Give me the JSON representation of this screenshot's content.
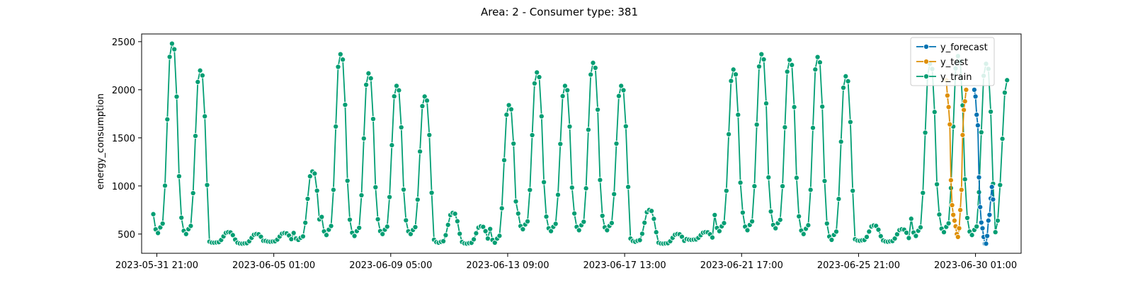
{
  "chart_data": {
    "type": "line",
    "title": "Area: 2 - Consumer type: 381",
    "xlabel": "",
    "ylabel": "energy_consumption",
    "ylim": [
      300,
      2580
    ],
    "yticks": [
      500,
      1000,
      1500,
      2000,
      2500
    ],
    "xlim": [
      "2023-05-31 08:00",
      "2023-07-01 16:00"
    ],
    "xticks": [
      "2023-05-31 21:00",
      "2023-06-05 01:00",
      "2023-06-09 05:00",
      "2023-06-13 09:00",
      "2023-06-17 13:00",
      "2023-06-21 17:00",
      "2023-06-25 21:00",
      "2023-06-30 01:00"
    ],
    "legend_position": "top-right",
    "grid": false,
    "series": [
      {
        "name": "y_forecast",
        "color": "#0173b2",
        "start": "2023-06-30 00:00",
        "step_hours": 1,
        "values": [
          2000,
          1930,
          1740,
          1630,
          1090,
          780,
          620,
          560,
          470,
          400,
          400,
          480,
          640,
          700,
          870,
          990,
          860
        ]
      },
      {
        "name": "y_test",
        "color": "#de8f05",
        "start": "2023-06-29 00:00",
        "step_hours": 1,
        "values": [
          2100,
          1940,
          1820,
          1640,
          1060,
          800,
          700,
          640,
          580,
          500,
          470,
          560,
          750,
          960,
          1530,
          1790,
          1880,
          2000
        ]
      },
      {
        "name": "y_train",
        "color": "#029e73",
        "start": "2023-05-31 18:00",
        "step_hours": 2,
        "daily": [
          {
            "peak": 2480,
            "low": 510
          },
          {
            "peak": 2200,
            "low": 500
          },
          {
            "peak": 520,
            "low": 410
          },
          {
            "peak": 500,
            "low": 400
          },
          {
            "peak": 510,
            "low": 420
          },
          {
            "peak": 1150,
            "low": 440
          },
          {
            "peak": 2370,
            "low": 490
          },
          {
            "peak": 2170,
            "low": 480
          },
          {
            "peak": 2040,
            "low": 500
          },
          {
            "peak": 1930,
            "low": 500
          },
          {
            "peak": 720,
            "low": 410
          },
          {
            "peak": 580,
            "low": 400
          },
          {
            "peak": 1840,
            "low": 410
          },
          {
            "peak": 2180,
            "low": 550
          },
          {
            "peak": 2040,
            "low": 530
          },
          {
            "peak": 2280,
            "low": 540
          },
          {
            "peak": 2040,
            "low": 540
          },
          {
            "peak": 750,
            "low": 420
          },
          {
            "peak": 500,
            "low": 400
          },
          {
            "peak": 520,
            "low": 440
          },
          {
            "peak": 2210,
            "low": 530
          },
          {
            "peak": 2370,
            "low": 540
          },
          {
            "peak": 2310,
            "low": 560
          },
          {
            "peak": 2340,
            "low": 500
          },
          {
            "peak": 2140,
            "low": 440
          },
          {
            "peak": 590,
            "low": 430
          },
          {
            "peak": 550,
            "low": 420
          },
          {
            "peak": 2270,
            "low": 480
          },
          {
            "peak": 2350,
            "low": 520
          },
          {
            "peak": 2270,
            "low": 490
          }
        ],
        "tail": [
          520,
          640,
          1010,
          1490,
          1970,
          2100
        ]
      }
    ]
  }
}
